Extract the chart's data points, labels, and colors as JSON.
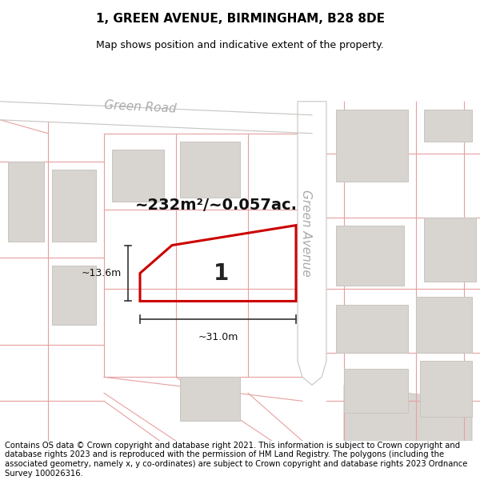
{
  "title": "1, GREEN AVENUE, BIRMINGHAM, B28 8DE",
  "subtitle": "Map shows position and indicative extent of the property.",
  "footer": "Contains OS data © Crown copyright and database right 2021. This information is subject to Crown copyright and database rights 2023 and is reproduced with the permission of HM Land Registry. The polygons (including the associated geometry, namely x, y co-ordinates) are subject to Crown copyright and database rights 2023 Ordnance Survey 100026316.",
  "area_text": "~232m²/~0.057ac.",
  "width_label": "~31.0m",
  "height_label": "~13.6m",
  "plot_number": "1",
  "bg": "#ffffff",
  "map_bg": "#f9f8f6",
  "bld_color": "#d8d4d0",
  "bld_edge": "#c8c4c0",
  "road_color": "#ffffff",
  "road_edge": "#c8c4c0",
  "pink_line": "#e8a0a0",
  "highlight_color": "#cc0000",
  "road_label_color": "#aaaaaa",
  "title_fontsize": 11,
  "subtitle_fontsize": 9,
  "footer_fontsize": 7.2,
  "road_label_green_road": "Green Road",
  "road_label_green_avenue": "Green Avenue"
}
